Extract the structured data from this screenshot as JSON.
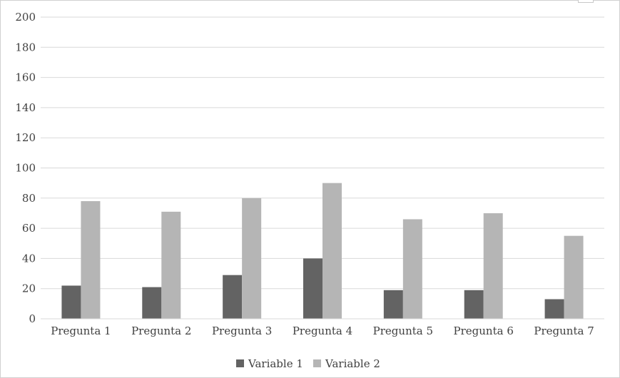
{
  "chart_data": {
    "type": "bar",
    "title": "",
    "xlabel": "",
    "ylabel": "",
    "ylim": [
      0,
      200
    ],
    "yticks": [
      0,
      20,
      40,
      60,
      80,
      100,
      120,
      140,
      160,
      180,
      200
    ],
    "grid": true,
    "legend_position": "bottom",
    "categories": [
      "Pregunta 1",
      "Pregunta 2",
      "Pregunta 3",
      "Pregunta 4",
      "Pregunta 5",
      "Pregunta 6",
      "Pregunta 7"
    ],
    "series": [
      {
        "name": "Variable 1",
        "color": "#636363",
        "values": [
          22,
          21,
          29,
          40,
          19,
          19,
          13
        ]
      },
      {
        "name": "Variable 2",
        "color": "#b5b5b5",
        "values": [
          78,
          71,
          80,
          90,
          66,
          70,
          55
        ]
      }
    ]
  }
}
